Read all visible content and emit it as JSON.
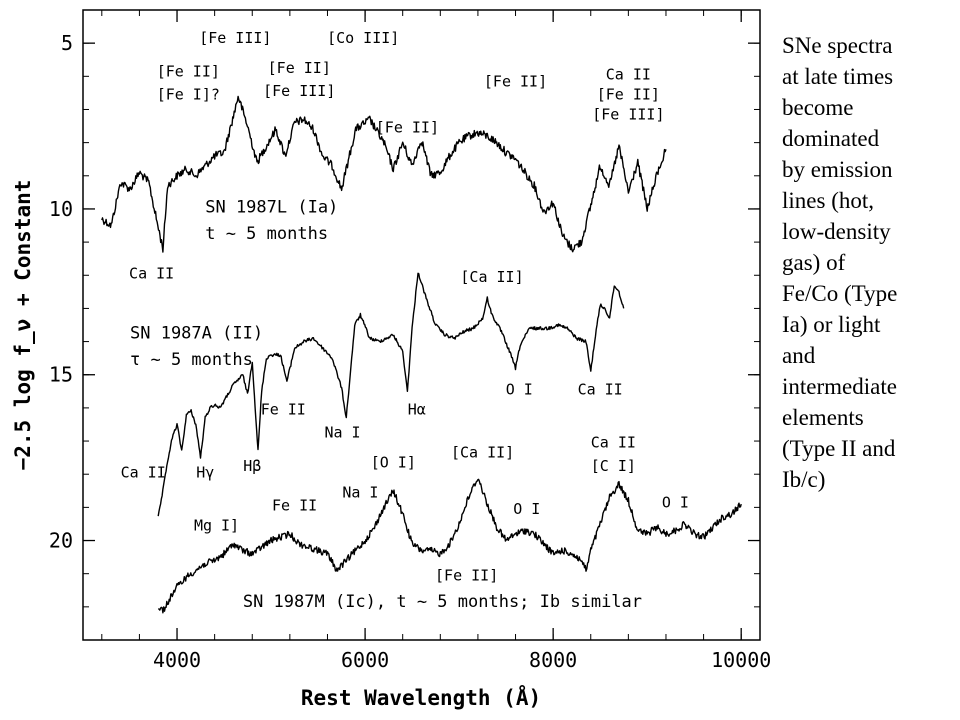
{
  "chart_data": {
    "type": "line",
    "xlabel": "Rest Wavelength (Å)",
    "ylabel": "−2.5 log f_ν + Constant",
    "xlim": [
      3000,
      10200
    ],
    "ylim": [
      23,
      4
    ],
    "y_axis_inverted": true,
    "x_ticks": [
      4000,
      6000,
      8000,
      10000
    ],
    "y_ticks": [
      5,
      10,
      15,
      20
    ],
    "grid": false,
    "series": [
      {
        "name": "SN 1987L (Ia)",
        "noise": 0.12,
        "x": [
          3200,
          3300,
          3400,
          3500,
          3600,
          3700,
          3780,
          3850,
          3900,
          4000,
          4100,
          4200,
          4300,
          4400,
          4500,
          4600,
          4650,
          4750,
          4850,
          4950,
          5050,
          5150,
          5250,
          5350,
          5450,
          5550,
          5650,
          5750,
          5900,
          6050,
          6200,
          6300,
          6400,
          6500,
          6600,
          6700,
          6800,
          6900,
          7000,
          7100,
          7200,
          7300,
          7400,
          7500,
          7600,
          7700,
          7800,
          7900,
          8000,
          8100,
          8200,
          8300,
          8400,
          8500,
          8600,
          8700,
          8800,
          8900,
          9000,
          9100,
          9200
        ],
        "y": [
          10.3,
          10.5,
          9.2,
          9.4,
          8.9,
          9.2,
          10.3,
          11.2,
          9.3,
          9.0,
          8.8,
          9.0,
          8.7,
          8.4,
          8.3,
          7.2,
          6.6,
          7.5,
          8.6,
          8.1,
          7.6,
          8.4,
          7.4,
          7.3,
          7.6,
          8.4,
          8.7,
          9.4,
          7.6,
          7.3,
          8.0,
          8.8,
          8.0,
          8.7,
          7.9,
          9.0,
          8.9,
          8.4,
          8.0,
          7.8,
          7.7,
          7.8,
          8.0,
          8.3,
          8.5,
          8.9,
          9.3,
          10.1,
          9.8,
          10.8,
          11.2,
          11.0,
          9.9,
          8.7,
          9.3,
          8.1,
          9.5,
          8.6,
          10.0,
          9.0,
          8.2
        ]
      },
      {
        "name": "SN 1987A (II)",
        "noise": 0.05,
        "x": [
          3800,
          3850,
          3900,
          3950,
          4000,
          4050,
          4100,
          4150,
          4200,
          4250,
          4300,
          4350,
          4400,
          4450,
          4500,
          4600,
          4700,
          4750,
          4800,
          4861,
          4900,
          4950,
          5000,
          5100,
          5169,
          5250,
          5350,
          5450,
          5550,
          5650,
          5750,
          5800,
          5890,
          5950,
          6050,
          6150,
          6300,
          6400,
          6450,
          6500,
          6563,
          6650,
          6750,
          6850,
          6950,
          7050,
          7150,
          7250,
          7300,
          7350,
          7450,
          7550,
          7600,
          7650,
          7750,
          7850,
          7950,
          8050,
          8150,
          8250,
          8350,
          8400,
          8450,
          8500,
          8550,
          8600,
          8650,
          8700,
          8750
        ],
        "y": [
          19.3,
          18.5,
          17.6,
          16.9,
          16.5,
          17.3,
          16.2,
          16.1,
          16.5,
          17.5,
          16.3,
          16.0,
          15.9,
          16.0,
          15.8,
          15.3,
          15.0,
          15.6,
          14.6,
          17.3,
          15.5,
          14.5,
          14.4,
          14.4,
          15.2,
          14.2,
          14.0,
          13.9,
          14.2,
          14.5,
          15.4,
          16.3,
          13.5,
          13.2,
          13.9,
          14.0,
          13.8,
          14.3,
          15.5,
          13.6,
          11.9,
          12.7,
          13.5,
          13.8,
          13.9,
          13.7,
          13.6,
          13.3,
          12.7,
          13.2,
          13.7,
          14.4,
          14.8,
          14.1,
          13.6,
          13.6,
          13.6,
          13.5,
          13.6,
          13.9,
          14.0,
          14.9,
          13.8,
          12.9,
          13.0,
          13.3,
          12.3,
          12.5,
          13.0
        ]
      },
      {
        "name": "SN 1987M (Ic)",
        "noise": 0.1,
        "x": [
          3800,
          3850,
          3900,
          3950,
          4000,
          4100,
          4200,
          4300,
          4400,
          4500,
          4600,
          4700,
          4800,
          4900,
          5000,
          5100,
          5200,
          5300,
          5400,
          5500,
          5600,
          5700,
          5800,
          5900,
          6000,
          6100,
          6200,
          6300,
          6400,
          6500,
          6600,
          6700,
          6800,
          6900,
          7000,
          7100,
          7200,
          7300,
          7400,
          7500,
          7600,
          7700,
          7800,
          7900,
          8000,
          8100,
          8200,
          8300,
          8350,
          8400,
          8500,
          8600,
          8700,
          8800,
          8900,
          9000,
          9100,
          9200,
          9300,
          9400,
          9500,
          9600,
          9700,
          9800,
          9900,
          10000
        ],
        "y": [
          22.0,
          22.1,
          21.9,
          21.6,
          21.4,
          21.1,
          20.9,
          20.7,
          20.6,
          20.4,
          20.1,
          20.3,
          20.4,
          20.2,
          20.0,
          19.9,
          19.8,
          20.1,
          20.2,
          20.3,
          20.4,
          20.9,
          20.6,
          20.3,
          20.0,
          19.6,
          19.0,
          18.5,
          19.2,
          20.1,
          20.3,
          20.3,
          20.4,
          20.1,
          19.5,
          18.7,
          18.1,
          18.9,
          19.6,
          20.0,
          19.8,
          19.7,
          19.8,
          20.1,
          20.4,
          20.3,
          20.4,
          20.6,
          20.9,
          20.3,
          19.5,
          18.7,
          18.3,
          18.8,
          19.7,
          19.8,
          19.6,
          19.8,
          19.7,
          19.5,
          19.8,
          19.9,
          19.6,
          19.3,
          19.2,
          18.9
        ]
      }
    ],
    "series_labels": [
      {
        "text": "SN 1987L (Ia)",
        "x": 4300,
        "y": 10.1
      },
      {
        "text": "t ~ 5 months",
        "x": 4300,
        "y": 10.9
      },
      {
        "text": "SN 1987A (II)",
        "x": 3500,
        "y": 13.9
      },
      {
        "text": "τ ~ 5 months",
        "x": 3500,
        "y": 14.7
      },
      {
        "text": "SN 1987M (Ic), t ~ 5 months; Ib similar",
        "x": 4700,
        "y": 22.0
      }
    ],
    "annotations": [
      {
        "text": "[Fe III]",
        "x": 4620,
        "y": 5.0
      },
      {
        "text": "[Co III]",
        "x": 5980,
        "y": 5.0
      },
      {
        "text": "[Fe II]",
        "x": 4120,
        "y": 6.0
      },
      {
        "text": "[Fe I]?",
        "x": 4120,
        "y": 6.7
      },
      {
        "text": "[Fe II]",
        "x": 5300,
        "y": 5.9
      },
      {
        "text": "[Fe III]",
        "x": 5300,
        "y": 6.6
      },
      {
        "text": "[Fe II]",
        "x": 7600,
        "y": 6.3
      },
      {
        "text": "[Fe II]",
        "x": 6450,
        "y": 7.7
      },
      {
        "text": "Ca II",
        "x": 8800,
        "y": 6.1
      },
      {
        "text": "[Fe II]",
        "x": 8800,
        "y": 6.7
      },
      {
        "text": "[Fe III]",
        "x": 8800,
        "y": 7.3
      },
      {
        "text": "Ca II",
        "x": 3730,
        "y": 12.1
      },
      {
        "text": "[Ca II]",
        "x": 7350,
        "y": 12.2
      },
      {
        "text": "O I",
        "x": 7640,
        "y": 15.6
      },
      {
        "text": "Ca II",
        "x": 8500,
        "y": 15.6
      },
      {
        "text": "Fe II",
        "x": 5130,
        "y": 16.2
      },
      {
        "text": "Na I",
        "x": 5760,
        "y": 16.9
      },
      {
        "text": "Hα",
        "x": 6550,
        "y": 16.2
      },
      {
        "text": "Ca II",
        "x": 3640,
        "y": 18.1
      },
      {
        "text": "Hγ",
        "x": 4300,
        "y": 18.1
      },
      {
        "text": "Hβ",
        "x": 4800,
        "y": 17.9
      },
      {
        "text": "[O I]",
        "x": 6300,
        "y": 17.8
      },
      {
        "text": "[Ca II]",
        "x": 7250,
        "y": 17.5
      },
      {
        "text": "Ca II",
        "x": 8640,
        "y": 17.2
      },
      {
        "text": "[C I]",
        "x": 8640,
        "y": 17.9
      },
      {
        "text": "Na I",
        "x": 5950,
        "y": 18.7
      },
      {
        "text": "Fe II",
        "x": 5250,
        "y": 19.1
      },
      {
        "text": "Mg I]",
        "x": 4420,
        "y": 19.7
      },
      {
        "text": "O I",
        "x": 7720,
        "y": 19.2
      },
      {
        "text": "O I",
        "x": 9300,
        "y": 19.0
      },
      {
        "text": "[Fe II]",
        "x": 7080,
        "y": 21.2
      }
    ]
  },
  "side_note": {
    "lines": [
      "SNe spectra",
      "at late times",
      "become",
      "dominated",
      "by emission",
      "lines (hot,",
      "low-density",
      "gas) of",
      "Fe/Co (Type",
      "Ia) or light",
      "and",
      "intermediate",
      "elements",
      "(Type II and",
      "Ib/c)"
    ]
  }
}
